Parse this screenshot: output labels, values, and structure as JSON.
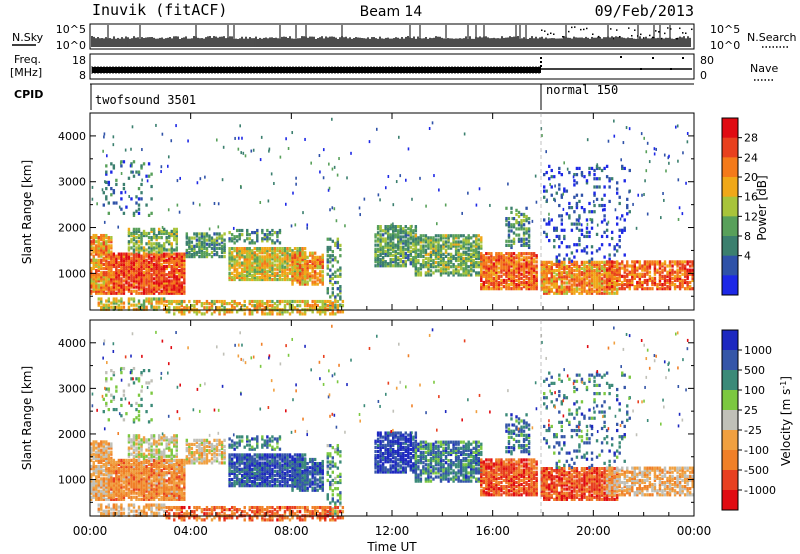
{
  "header": {
    "station": "Inuvik (fitACF)",
    "beam": "Beam 14",
    "date": "09/Feb/2013"
  },
  "strips": {
    "nsky": {
      "label": "N.Sky",
      "ytick_top": "10^5",
      "ytick_bottom": "10^0",
      "right_tick_top": "10^5",
      "right_tick_bottom": "10^0",
      "right_label": "N.Search"
    },
    "freq": {
      "label_line1": "Freq.",
      "label_line2": "[MHz]",
      "ytick_top": "18",
      "ytick_bottom": "8",
      "right_tick_top": "80",
      "right_tick_bottom": "0",
      "right_label": "Nave"
    },
    "cpid": {
      "label": "CPID",
      "segments": [
        {
          "name": "twofsound 3501",
          "start_hour": 0,
          "end_hour": 18.0
        },
        {
          "name": "normal 150",
          "start_hour": 18.0,
          "end_hour": 24
        }
      ]
    }
  },
  "chart_data": [
    {
      "type": "heatmap",
      "panel": "power",
      "ylabel": "Slant Range [km]",
      "colorbar_label": "Power [dB]",
      "ylim": [
        200,
        4500
      ],
      "yticks": [
        "1000",
        "2000",
        "3000",
        "4000"
      ],
      "yticks_values": [
        1000,
        2000,
        3000,
        4000
      ],
      "colorbar_ticks": [
        "4",
        "8",
        "12",
        "16",
        "20",
        "24",
        "28"
      ],
      "colorbar_tick_values": [
        4,
        8,
        12,
        16,
        20,
        24,
        28
      ],
      "colorbar_range": [
        0,
        32
      ],
      "colors": [
        "#1d28e6",
        "#2f52a8",
        "#3b7f6e",
        "#58a05a",
        "#a8c43a",
        "#f0a818",
        "#f47a1a",
        "#e8401e",
        "#e00b12"
      ]
    },
    {
      "type": "heatmap",
      "panel": "velocity",
      "ylabel": "Slant Range [km]",
      "colorbar_label": "Velocity [m s^-1]",
      "ylim": [
        200,
        4500
      ],
      "yticks": [
        "1000",
        "2000",
        "3000",
        "4000"
      ],
      "yticks_values": [
        1000,
        2000,
        3000,
        4000
      ],
      "colorbar_ticks": [
        "1000",
        "500",
        "100",
        "25",
        "-25",
        "-100",
        "-500",
        "-1000"
      ],
      "colors": [
        "#1d28c0",
        "#3556a8",
        "#3b8a78",
        "#7cc840",
        "#c0c0b8",
        "#f0a040",
        "#f08028",
        "#e84020",
        "#e00b12"
      ]
    }
  ],
  "xaxis": {
    "label": "Time UT",
    "ticks": [
      "00:00",
      "04:00",
      "08:00",
      "12:00",
      "16:00",
      "20:00",
      "00:00"
    ],
    "tick_hours": [
      0,
      4,
      8,
      12,
      16,
      20,
      24
    ]
  }
}
